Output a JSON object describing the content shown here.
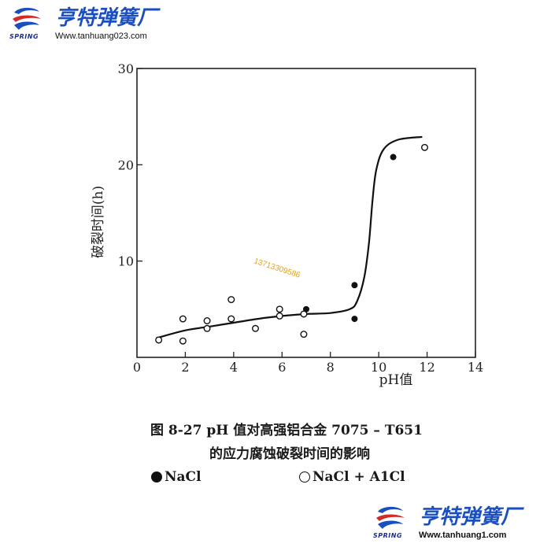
{
  "header": {
    "brand_name": "亨特弹簧厂",
    "brand_tag": "SPRING",
    "url": "Www.tanhuang023.com"
  },
  "footer": {
    "brand_name": "亨特弹簧厂",
    "brand_tag": "SPRING",
    "url": "Www.tanhuang1.com"
  },
  "watermark": "13713309586",
  "caption": {
    "line1": "图 8-27   pH 值对高强铝合金 7075 – T651",
    "line2": "的应力腐蚀破裂时间的影响"
  },
  "legend": {
    "nacl": "NaCl",
    "mix": "NaCl + A1Cl"
  },
  "colors": {
    "brand_blue": "#1b4fbf",
    "brand_red": "#d42a2a",
    "ink": "#1a1a1a",
    "watermark": "#e3a21a"
  },
  "chart_data": {
    "type": "scatter",
    "title": "",
    "xlabel": "pH值",
    "ylabel": "破裂时间(h)",
    "xlim": [
      0,
      14
    ],
    "ylim": [
      0,
      30
    ],
    "x_ticks": [
      "0",
      "2",
      "4",
      "6",
      "8",
      "10",
      "12",
      "14"
    ],
    "y_ticks": [
      "10",
      "20",
      "30"
    ],
    "grid": false,
    "legend_position": "bottom",
    "series": [
      {
        "name": "NaCl",
        "marker": "filled",
        "points": [
          [
            7,
            5
          ],
          [
            9,
            7.5
          ],
          [
            9,
            4
          ],
          [
            10.6,
            20.8
          ]
        ]
      },
      {
        "name": "NaCl + A1Cl",
        "marker": "open",
        "points": [
          [
            0.9,
            1.8
          ],
          [
            1.9,
            4
          ],
          [
            1.9,
            1.7
          ],
          [
            2.9,
            3.8
          ],
          [
            2.9,
            3
          ],
          [
            3.9,
            6
          ],
          [
            3.9,
            4
          ],
          [
            4.9,
            3
          ],
          [
            5.9,
            5
          ],
          [
            5.9,
            4.3
          ],
          [
            6.9,
            4.5
          ],
          [
            6.9,
            2.4
          ],
          [
            11.9,
            21.8
          ]
        ]
      }
    ],
    "trend_curve": [
      [
        0.8,
        2
      ],
      [
        2,
        2.8
      ],
      [
        3,
        3.2
      ],
      [
        4,
        3.6
      ],
      [
        5,
        4
      ],
      [
        6,
        4.3
      ],
      [
        7,
        4.5
      ],
      [
        8,
        4.6
      ],
      [
        8.8,
        5
      ],
      [
        9.1,
        5.8
      ],
      [
        9.4,
        8.3
      ],
      [
        9.6,
        12
      ],
      [
        9.75,
        16.5
      ],
      [
        9.9,
        19.5
      ],
      [
        10.2,
        21.6
      ],
      [
        10.8,
        22.6
      ],
      [
        11.8,
        22.9
      ]
    ]
  }
}
